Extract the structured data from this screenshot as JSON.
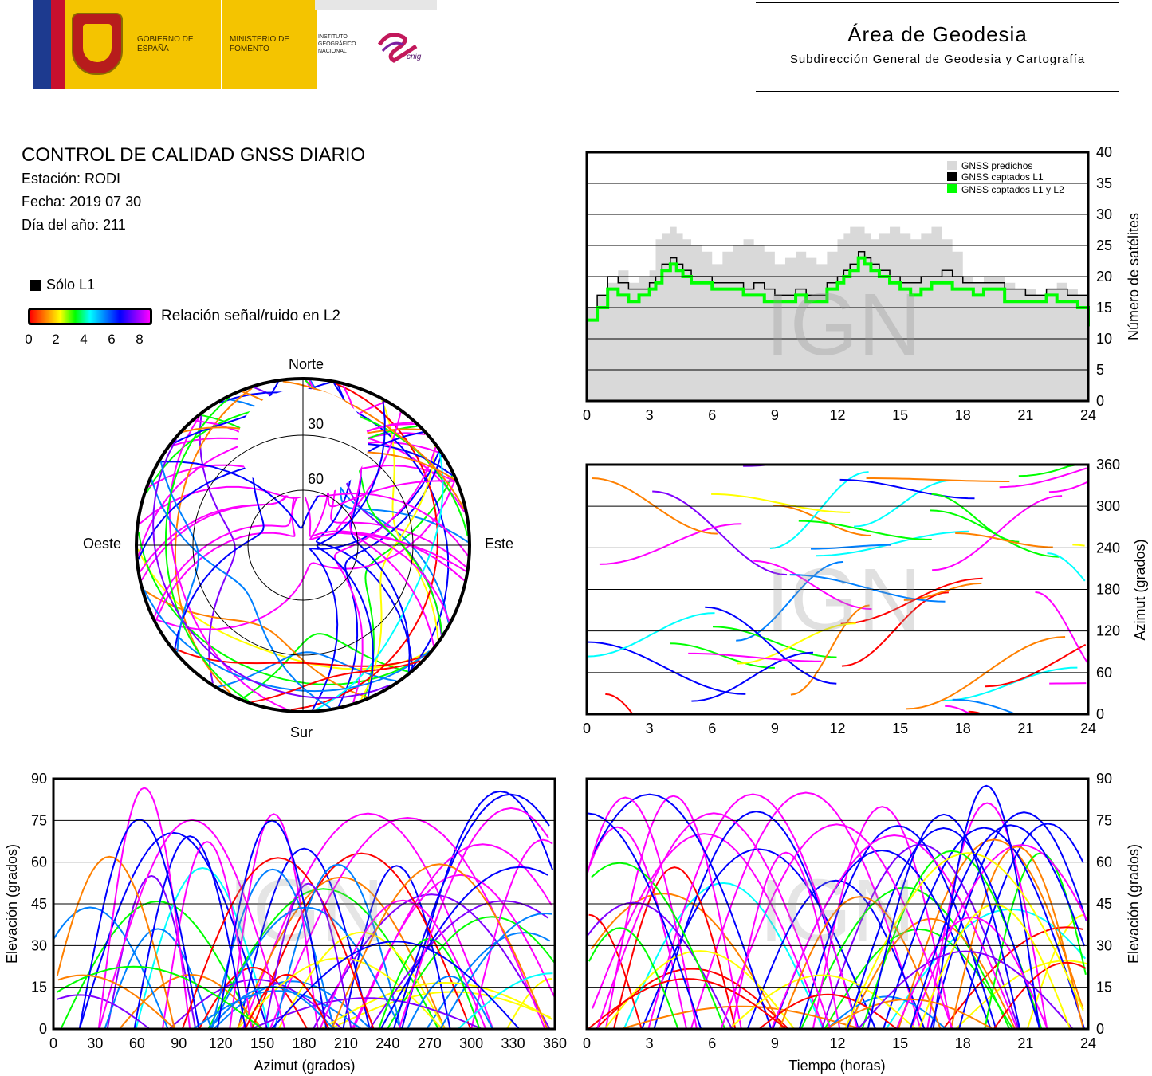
{
  "header": {
    "logo": {
      "gobierno": "GOBIERNO DE ESPAÑA",
      "ministerio": "MINISTERIO DE FOMENTO",
      "instituto": "INSTITUTO GEOGRÁFICO NACIONAL",
      "cnig": "cnig"
    },
    "area_title": "Área de Geodesia",
    "area_subtitle": "Subdirección General de Geodesia y Cartografía"
  },
  "report": {
    "title": "CONTROL DE CALIDAD GNSS DIARIO",
    "station": "Estación: RODI",
    "date": "Fecha: 2019 07 30",
    "doy": "Día del año: 211"
  },
  "legend": {
    "solo_l1": "Sólo L1",
    "snr_label": "Relación señal/ruido en L2",
    "snr_ticks": [
      "0",
      "2",
      "4",
      "6",
      "8"
    ],
    "snr_colors": [
      "#ff0000",
      "#ff8000",
      "#ffff00",
      "#00ff00",
      "#00ffff",
      "#0080ff",
      "#0000ff",
      "#8000ff",
      "#ff00ff"
    ]
  },
  "watermark": "IGN",
  "chart_data": [
    {
      "type": "polar",
      "id": "skyplot",
      "directions": {
        "north": "Norte",
        "south": "Sur",
        "east": "Este",
        "west": "Oeste"
      },
      "ring_labels": [
        "30",
        "60"
      ],
      "elevation_rings": [
        30,
        60
      ],
      "radial_range": [
        0,
        90
      ]
    },
    {
      "type": "area",
      "id": "num-satellites",
      "ylabel": "Número de satélites",
      "xlabel": "",
      "xlim": [
        0,
        24
      ],
      "ylim": [
        0,
        40
      ],
      "xticks": [
        "0",
        "3",
        "6",
        "9",
        "12",
        "15",
        "18",
        "21",
        "24"
      ],
      "yticks": [
        "0",
        "5",
        "10",
        "15",
        "20",
        "25",
        "30",
        "35",
        "40"
      ],
      "grid": true,
      "legend_position": "top-right",
      "series": [
        {
          "name": "GNSS predichos",
          "color": "#d9d9d9",
          "x": [
            0,
            0.5,
            1,
            1.5,
            2,
            2.5,
            3,
            3.3,
            3.6,
            4,
            4.3,
            4.6,
            5,
            5.5,
            6,
            6.5,
            7,
            7.5,
            8,
            8.5,
            9,
            9.5,
            10,
            10.5,
            11,
            11.5,
            12,
            12.3,
            12.6,
            13,
            13.3,
            13.6,
            14,
            14.5,
            15,
            15.5,
            16,
            16.5,
            17,
            17.5,
            18,
            18.5,
            19,
            19.5,
            20,
            20.5,
            21,
            21.5,
            22,
            22.5,
            23,
            23.5,
            24
          ],
          "y": [
            15,
            17,
            19,
            21,
            19,
            20,
            21,
            26,
            27,
            28,
            27,
            26,
            25,
            24,
            22,
            24,
            25,
            26,
            25,
            24,
            22,
            23,
            24,
            23,
            22,
            24,
            26,
            27,
            28,
            28,
            27,
            26,
            27,
            28,
            27,
            26,
            27,
            28,
            26,
            24,
            20,
            19,
            20,
            20,
            19,
            18,
            18,
            17,
            18,
            19,
            18,
            17,
            16
          ]
        },
        {
          "name": "GNSS captados L1",
          "color": "#000000",
          "x": [
            0,
            0.5,
            1,
            1.5,
            2,
            2.5,
            3,
            3.3,
            3.6,
            4,
            4.3,
            4.6,
            5,
            5.5,
            6,
            6.5,
            7,
            7.5,
            8,
            8.5,
            9,
            9.5,
            10,
            10.5,
            11,
            11.5,
            12,
            12.3,
            12.6,
            13,
            13.3,
            13.6,
            14,
            14.5,
            15,
            15.5,
            16,
            16.5,
            17,
            17.5,
            18,
            18.5,
            19,
            19.5,
            20,
            20.5,
            21,
            21.5,
            22,
            22.5,
            23,
            23.5,
            24
          ],
          "y": [
            15,
            17,
            20,
            19,
            18,
            18,
            19,
            20,
            22,
            23,
            22,
            21,
            20,
            20,
            19,
            19,
            19,
            18,
            19,
            18,
            17,
            17,
            18,
            17,
            17,
            19,
            20,
            21,
            22,
            24,
            23,
            22,
            21,
            20,
            19,
            19,
            20,
            20,
            21,
            20,
            19,
            19,
            19,
            19,
            18,
            18,
            17,
            17,
            18,
            18,
            17,
            17,
            14
          ]
        },
        {
          "name": "GNSS captados L1 y L2",
          "color": "#00ff00",
          "x": [
            0,
            0.5,
            1,
            1.5,
            2,
            2.5,
            3,
            3.3,
            3.6,
            4,
            4.3,
            4.6,
            5,
            5.5,
            6,
            6.5,
            7,
            7.5,
            8,
            8.5,
            9,
            9.5,
            10,
            10.5,
            11,
            11.5,
            12,
            12.3,
            12.6,
            13,
            13.3,
            13.6,
            14,
            14.5,
            15,
            15.5,
            16,
            16.5,
            17,
            17.5,
            18,
            18.5,
            19,
            19.5,
            20,
            20.5,
            21,
            21.5,
            22,
            22.5,
            23,
            23.5,
            24
          ],
          "y": [
            13,
            15,
            18,
            17,
            16,
            17,
            18,
            19,
            21,
            22,
            21,
            20,
            19,
            19,
            18,
            18,
            18,
            17,
            17,
            16,
            16,
            16,
            17,
            16,
            16,
            18,
            19,
            20,
            21,
            23,
            22,
            21,
            20,
            19,
            18,
            17,
            18,
            19,
            19,
            18,
            18,
            17,
            18,
            18,
            16,
            16,
            16,
            16,
            17,
            16,
            16,
            15,
            12
          ]
        }
      ]
    },
    {
      "type": "scatter",
      "id": "azimuth-time",
      "ylabel": "Azimut (grados)",
      "xlabel": "",
      "xlim": [
        0,
        24
      ],
      "ylim": [
        0,
        360
      ],
      "xticks": [
        "0",
        "3",
        "6",
        "9",
        "12",
        "15",
        "18",
        "21",
        "24"
      ],
      "yticks": [
        "0",
        "60",
        "120",
        "180",
        "240",
        "300",
        "360"
      ],
      "grid": true
    },
    {
      "type": "scatter",
      "id": "elevation-azimuth",
      "ylabel": "Elevación (grados)",
      "xlabel": "Azimut (grados)",
      "xlim": [
        0,
        360
      ],
      "ylim": [
        0,
        90
      ],
      "xticks": [
        "0",
        "30",
        "60",
        "90",
        "120",
        "150",
        "180",
        "210",
        "240",
        "270",
        "300",
        "330",
        "360"
      ],
      "yticks": [
        "0",
        "15",
        "30",
        "45",
        "60",
        "75",
        "90"
      ],
      "grid": true
    },
    {
      "type": "line",
      "id": "elevation-time",
      "ylabel": "Elevación (grados)",
      "xlabel": "Tiempo (horas)",
      "xlim": [
        0,
        24
      ],
      "ylim": [
        0,
        90
      ],
      "xticks": [
        "0",
        "3",
        "6",
        "9",
        "12",
        "15",
        "18",
        "21",
        "24"
      ],
      "yticks": [
        "0",
        "15",
        "30",
        "45",
        "60",
        "75",
        "90"
      ],
      "grid": true
    }
  ]
}
